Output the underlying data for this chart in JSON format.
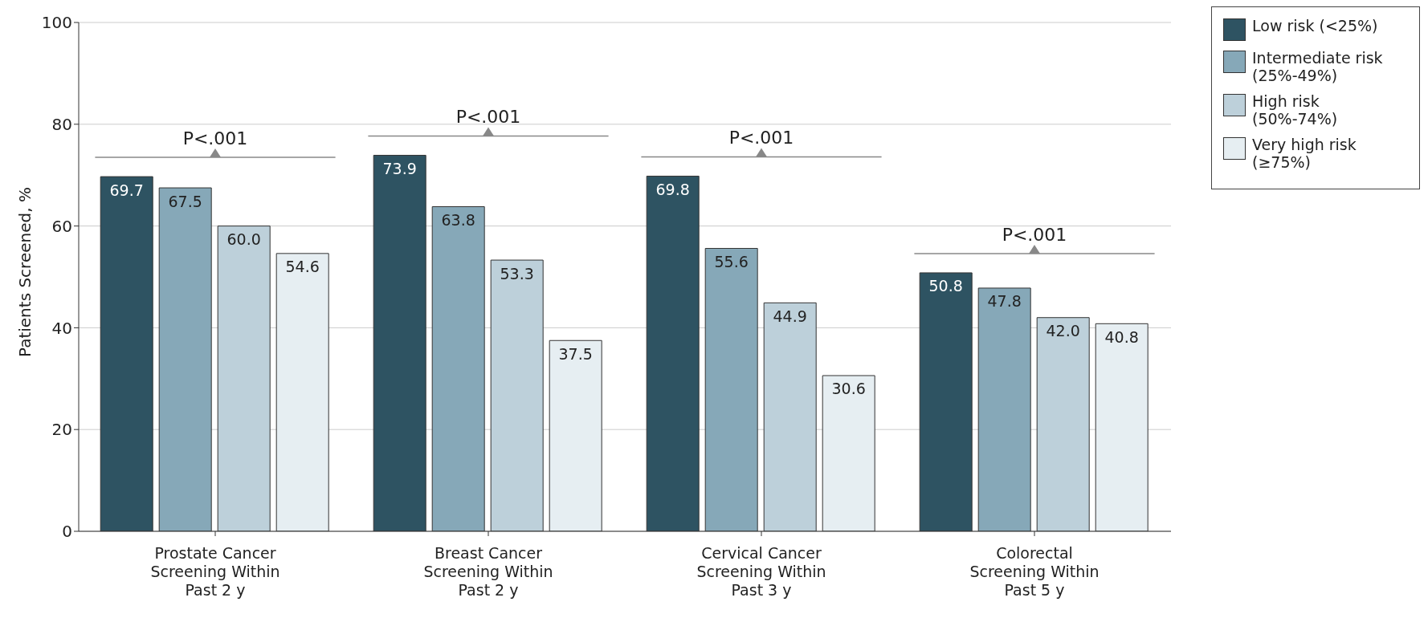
{
  "chart_data": {
    "type": "bar",
    "ylabel": "Patients Screened, %",
    "categories": [
      "Prostate Cancer Screening Within Past 2 y",
      "Breast Cancer Screening Within Past 2 y",
      "Cervical Cancer Screening Within Past 3 y",
      "Colorectal Screening Within Past 5 y"
    ],
    "series": [
      {
        "name": "Low risk (<25%)",
        "color": "#2e5362",
        "values": [
          69.7,
          73.9,
          69.8,
          50.8
        ],
        "value_labels": [
          "69.7",
          "73.9",
          "69.8",
          "50.8"
        ]
      },
      {
        "name": "Intermediate risk (25%-49%)",
        "color": "#86a8b8",
        "values": [
          67.5,
          63.8,
          55.6,
          47.8
        ],
        "value_labels": [
          "67.5",
          "63.8",
          "55.6",
          "47.8"
        ]
      },
      {
        "name": "High risk (50%-74%)",
        "color": "#bdd0da",
        "values": [
          60,
          53.3,
          44.9,
          42
        ],
        "value_labels": [
          "60.0",
          "53.3",
          "44.9",
          "42.0"
        ]
      },
      {
        "name": "Very high risk (≥75%)",
        "color": "#e6eef2",
        "values": [
          54.6,
          37.5,
          30.6,
          40.8
        ],
        "value_labels": [
          "54.6",
          "37.5",
          "30.6",
          "40.8"
        ]
      }
    ],
    "ylim": [
      0,
      100
    ],
    "yticks": [
      0,
      20,
      40,
      60,
      80,
      100
    ],
    "grid": "y",
    "legend": "top right",
    "annotations": [
      "P<.001",
      "P<.001",
      "P<.001",
      "P<.001"
    ]
  }
}
